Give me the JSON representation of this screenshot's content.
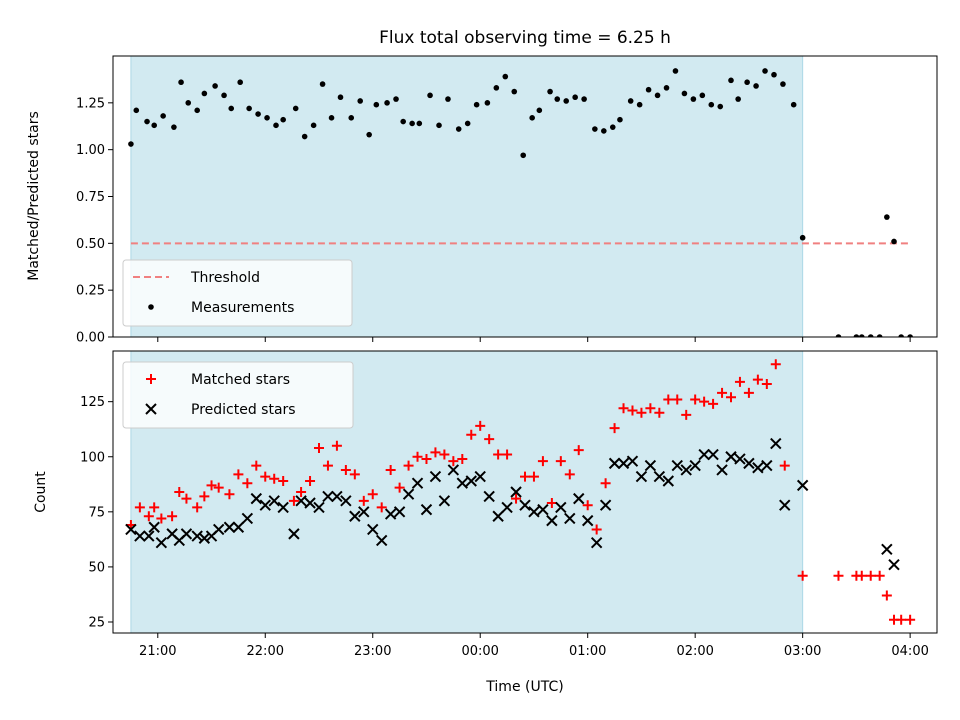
{
  "chart_data": [
    {
      "type": "scatter",
      "title": "Flux total observing time = 6.25 h",
      "ylabel": "Matched/Predicted stars",
      "xlabel": "",
      "ylim": [
        0,
        1.5
      ],
      "yticks": [
        0.0,
        0.25,
        0.5,
        0.75,
        1.0,
        1.25
      ],
      "ytick_labels": [
        "0.00",
        "0.25",
        "0.50",
        "0.75",
        "1.00",
        "1.25"
      ],
      "x_is_time_minutes_from_midnight": true,
      "xlim": [
        "20:35",
        "04:15"
      ],
      "shaded_interval": [
        "20:45",
        "03:00"
      ],
      "shade_color": "#add8e6",
      "grid": false,
      "legend_position": "lower-left",
      "threshold": {
        "name": "Threshold",
        "value": 0.5,
        "x_range": [
          "20:45",
          "04:00"
        ],
        "color": "#f08080",
        "style": "dashed"
      },
      "series": [
        {
          "name": "Measurements",
          "marker": "dot",
          "color": "#000000",
          "points": [
            [
              "20:45",
              1.03
            ],
            [
              "20:48",
              1.21
            ],
            [
              "20:54",
              1.15
            ],
            [
              "20:58",
              1.13
            ],
            [
              "21:03",
              1.18
            ],
            [
              "21:09",
              1.12
            ],
            [
              "21:13",
              1.36
            ],
            [
              "21:17",
              1.25
            ],
            [
              "21:22",
              1.21
            ],
            [
              "21:26",
              1.3
            ],
            [
              "21:32",
              1.34
            ],
            [
              "21:37",
              1.29
            ],
            [
              "21:41",
              1.22
            ],
            [
              "21:46",
              1.36
            ],
            [
              "21:51",
              1.22
            ],
            [
              "21:56",
              1.19
            ],
            [
              "22:01",
              1.17
            ],
            [
              "22:06",
              1.13
            ],
            [
              "22:10",
              1.16
            ],
            [
              "22:17",
              1.22
            ],
            [
              "22:22",
              1.07
            ],
            [
              "22:27",
              1.13
            ],
            [
              "22:32",
              1.35
            ],
            [
              "22:37",
              1.17
            ],
            [
              "22:42",
              1.28
            ],
            [
              "22:48",
              1.17
            ],
            [
              "22:53",
              1.26
            ],
            [
              "22:58",
              1.08
            ],
            [
              "23:02",
              1.24
            ],
            [
              "23:08",
              1.25
            ],
            [
              "23:13",
              1.27
            ],
            [
              "23:17",
              1.15
            ],
            [
              "23:22",
              1.14
            ],
            [
              "23:26",
              1.14
            ],
            [
              "23:32",
              1.29
            ],
            [
              "23:37",
              1.13
            ],
            [
              "23:42",
              1.27
            ],
            [
              "23:48",
              1.11
            ],
            [
              "23:53",
              1.14
            ],
            [
              "23:58",
              1.24
            ],
            [
              "00:04",
              1.25
            ],
            [
              "00:09",
              1.33
            ],
            [
              "00:14",
              1.39
            ],
            [
              "00:19",
              1.31
            ],
            [
              "00:24",
              0.97
            ],
            [
              "00:29",
              1.17
            ],
            [
              "00:33",
              1.21
            ],
            [
              "00:39",
              1.31
            ],
            [
              "00:43",
              1.27
            ],
            [
              "00:48",
              1.26
            ],
            [
              "00:53",
              1.28
            ],
            [
              "00:58",
              1.27
            ],
            [
              "01:04",
              1.11
            ],
            [
              "01:09",
              1.1
            ],
            [
              "01:14",
              1.12
            ],
            [
              "01:18",
              1.16
            ],
            [
              "01:24",
              1.26
            ],
            [
              "01:29",
              1.24
            ],
            [
              "01:34",
              1.32
            ],
            [
              "01:39",
              1.29
            ],
            [
              "01:44",
              1.33
            ],
            [
              "01:49",
              1.42
            ],
            [
              "01:54",
              1.3
            ],
            [
              "01:59",
              1.27
            ],
            [
              "02:04",
              1.29
            ],
            [
              "02:09",
              1.24
            ],
            [
              "02:14",
              1.23
            ],
            [
              "02:20",
              1.37
            ],
            [
              "02:24",
              1.27
            ],
            [
              "02:29",
              1.36
            ],
            [
              "02:34",
              1.34
            ],
            [
              "02:39",
              1.42
            ],
            [
              "02:44",
              1.4
            ],
            [
              "02:49",
              1.35
            ],
            [
              "02:55",
              1.24
            ],
            [
              "03:00",
              0.53
            ],
            [
              "03:20",
              0.0
            ],
            [
              "03:30",
              0.0
            ],
            [
              "03:33",
              0.0
            ],
            [
              "03:38",
              0.0
            ],
            [
              "03:43",
              0.0
            ],
            [
              "03:47",
              0.64
            ],
            [
              "03:51",
              0.51
            ],
            [
              "03:55",
              0.0
            ],
            [
              "04:00",
              0.0
            ]
          ]
        }
      ]
    },
    {
      "type": "scatter",
      "title": "",
      "ylabel": "Count",
      "xlabel": "Time (UTC)",
      "ylim": [
        20,
        148
      ],
      "yticks": [
        25,
        50,
        75,
        100,
        125
      ],
      "ytick_labels": [
        "25",
        "50",
        "75",
        "100",
        "125"
      ],
      "xticks": [
        "21:00",
        "22:00",
        "23:00",
        "00:00",
        "01:00",
        "02:00",
        "03:00",
        "04:00"
      ],
      "xtick_labels": [
        "21:00",
        "22:00",
        "23:00",
        "00:00",
        "01:00",
        "02:00",
        "03:00",
        "04:00"
      ],
      "xlim": [
        "20:35",
        "04:15"
      ],
      "shaded_interval": [
        "20:45",
        "03:00"
      ],
      "shade_color": "#add8e6",
      "grid": false,
      "legend_position": "top-left",
      "series": [
        {
          "name": "Matched stars",
          "marker": "plus",
          "color": "#ff0000",
          "points": [
            [
              "20:45",
              69
            ],
            [
              "20:50",
              77
            ],
            [
              "20:55",
              73
            ],
            [
              "20:58",
              77
            ],
            [
              "21:02",
              72
            ],
            [
              "21:08",
              73
            ],
            [
              "21:12",
              84
            ],
            [
              "21:16",
              81
            ],
            [
              "21:22",
              77
            ],
            [
              "21:26",
              82
            ],
            [
              "21:30",
              87
            ],
            [
              "21:34",
              86
            ],
            [
              "21:40",
              83
            ],
            [
              "21:45",
              92
            ],
            [
              "21:50",
              88
            ],
            [
              "21:55",
              96
            ],
            [
              "22:00",
              91
            ],
            [
              "22:05",
              90
            ],
            [
              "22:10",
              89
            ],
            [
              "22:16",
              80
            ],
            [
              "22:20",
              84
            ],
            [
              "22:25",
              89
            ],
            [
              "22:30",
              104
            ],
            [
              "22:35",
              96
            ],
            [
              "22:40",
              105
            ],
            [
              "22:45",
              94
            ],
            [
              "22:50",
              92
            ],
            [
              "22:55",
              80
            ],
            [
              "23:00",
              83
            ],
            [
              "23:05",
              77
            ],
            [
              "23:10",
              94
            ],
            [
              "23:15",
              86
            ],
            [
              "23:20",
              96
            ],
            [
              "23:25",
              100
            ],
            [
              "23:30",
              99
            ],
            [
              "23:35",
              102
            ],
            [
              "23:40",
              101
            ],
            [
              "23:45",
              98
            ],
            [
              "23:50",
              99
            ],
            [
              "23:55",
              110
            ],
            [
              "00:00",
              114
            ],
            [
              "00:05",
              108
            ],
            [
              "00:10",
              101
            ],
            [
              "00:15",
              101
            ],
            [
              "00:20",
              81
            ],
            [
              "00:25",
              91
            ],
            [
              "00:30",
              91
            ],
            [
              "00:35",
              98
            ],
            [
              "00:40",
              79
            ],
            [
              "00:45",
              98
            ],
            [
              "00:50",
              92
            ],
            [
              "00:55",
              103
            ],
            [
              "01:00",
              78
            ],
            [
              "01:05",
              67
            ],
            [
              "01:10",
              88
            ],
            [
              "01:15",
              113
            ],
            [
              "01:20",
              122
            ],
            [
              "01:25",
              121
            ],
            [
              "01:30",
              120
            ],
            [
              "01:35",
              122
            ],
            [
              "01:40",
              120
            ],
            [
              "01:45",
              126
            ],
            [
              "01:50",
              126
            ],
            [
              "01:55",
              119
            ],
            [
              "02:00",
              126
            ],
            [
              "02:05",
              125
            ],
            [
              "02:10",
              124
            ],
            [
              "02:15",
              129
            ],
            [
              "02:20",
              127
            ],
            [
              "02:25",
              134
            ],
            [
              "02:30",
              129
            ],
            [
              "02:35",
              135
            ],
            [
              "02:40",
              133
            ],
            [
              "02:45",
              142
            ],
            [
              "02:50",
              96
            ],
            [
              "03:00",
              46
            ],
            [
              "03:20",
              46
            ],
            [
              "03:30",
              46
            ],
            [
              "03:33",
              46
            ],
            [
              "03:38",
              46
            ],
            [
              "03:43",
              46
            ],
            [
              "03:47",
              37
            ],
            [
              "03:51",
              26
            ],
            [
              "03:55",
              26
            ],
            [
              "04:00",
              26
            ]
          ]
        },
        {
          "name": "Predicted stars",
          "marker": "x",
          "color": "#000000",
          "points": [
            [
              "20:45",
              67
            ],
            [
              "20:50",
              64
            ],
            [
              "20:55",
              64
            ],
            [
              "20:58",
              68
            ],
            [
              "21:02",
              61
            ],
            [
              "21:08",
              65
            ],
            [
              "21:12",
              62
            ],
            [
              "21:16",
              65
            ],
            [
              "21:22",
              64
            ],
            [
              "21:26",
              63
            ],
            [
              "21:30",
              64
            ],
            [
              "21:34",
              67
            ],
            [
              "21:40",
              68
            ],
            [
              "21:45",
              68
            ],
            [
              "21:50",
              72
            ],
            [
              "21:55",
              81
            ],
            [
              "22:00",
              78
            ],
            [
              "22:05",
              80
            ],
            [
              "22:10",
              77
            ],
            [
              "22:16",
              65
            ],
            [
              "22:20",
              80
            ],
            [
              "22:25",
              79
            ],
            [
              "22:30",
              77
            ],
            [
              "22:35",
              82
            ],
            [
              "22:40",
              82
            ],
            [
              "22:45",
              80
            ],
            [
              "22:50",
              73
            ],
            [
              "22:55",
              75
            ],
            [
              "23:00",
              67
            ],
            [
              "23:05",
              62
            ],
            [
              "23:10",
              74
            ],
            [
              "23:15",
              75
            ],
            [
              "23:20",
              83
            ],
            [
              "23:25",
              88
            ],
            [
              "23:30",
              76
            ],
            [
              "23:35",
              91
            ],
            [
              "23:40",
              80
            ],
            [
              "23:45",
              94
            ],
            [
              "23:50",
              88
            ],
            [
              "23:55",
              89
            ],
            [
              "00:00",
              91
            ],
            [
              "00:05",
              82
            ],
            [
              "00:10",
              73
            ],
            [
              "00:15",
              77
            ],
            [
              "00:20",
              84
            ],
            [
              "00:25",
              78
            ],
            [
              "00:30",
              75
            ],
            [
              "00:35",
              76
            ],
            [
              "00:40",
              71
            ],
            [
              "00:45",
              77
            ],
            [
              "00:50",
              72
            ],
            [
              "00:55",
              81
            ],
            [
              "01:00",
              71
            ],
            [
              "01:05",
              61
            ],
            [
              "01:10",
              78
            ],
            [
              "01:15",
              97
            ],
            [
              "01:20",
              97
            ],
            [
              "01:25",
              98
            ],
            [
              "01:30",
              91
            ],
            [
              "01:35",
              96
            ],
            [
              "01:40",
              91
            ],
            [
              "01:45",
              89
            ],
            [
              "01:50",
              96
            ],
            [
              "01:55",
              94
            ],
            [
              "02:00",
              96
            ],
            [
              "02:05",
              101
            ],
            [
              "02:10",
              101
            ],
            [
              "02:15",
              94
            ],
            [
              "02:20",
              100
            ],
            [
              "02:25",
              99
            ],
            [
              "02:30",
              97
            ],
            [
              "02:35",
              95
            ],
            [
              "02:40",
              96
            ],
            [
              "02:45",
              106
            ],
            [
              "02:50",
              78
            ],
            [
              "03:00",
              87
            ],
            [
              "03:47",
              58
            ],
            [
              "03:51",
              51
            ]
          ]
        }
      ]
    }
  ]
}
